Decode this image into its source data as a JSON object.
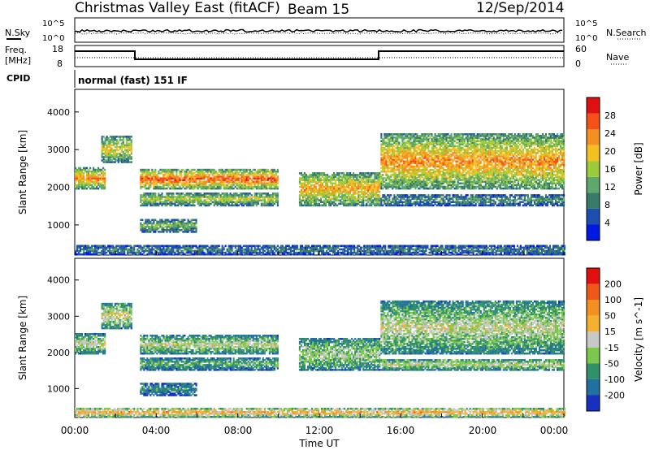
{
  "header": {
    "title": "Christmas Valley East (fitACF)",
    "beam": "Beam 15",
    "date": "12/Sep/2014"
  },
  "params": {
    "nsky_label": "N.Sky",
    "nsearch_label": "N.Search",
    "noise_ticks_top": "10^5",
    "noise_ticks_bottom": "10^0",
    "freq_label_1": "Freq.",
    "freq_label_2": "[MHz]",
    "freq_ticks": [
      "18",
      "8"
    ],
    "nave_label": "Nave",
    "nave_ticks": [
      "60",
      "0"
    ],
    "cpid_label": "CPID",
    "cpid_value": "normal (fast) 151 IF"
  },
  "chart_data": [
    {
      "type": "heatmap",
      "name": "power",
      "ylabel": "Slant Range [km]",
      "yticks": [
        1000,
        2000,
        3000,
        4000
      ],
      "ylim": [
        200,
        4600
      ],
      "xlim": [
        0,
        24
      ],
      "colorbar_label": "Power [dB]",
      "colorbar_ticks": [
        "4",
        "8",
        "12",
        "16",
        "20",
        "24",
        "28"
      ],
      "colors": [
        "#0018e0",
        "#1d4fb0",
        "#3a7a6a",
        "#5da86a",
        "#9ccb3a",
        "#f4c020",
        "#f49020",
        "#f45018",
        "#e01010"
      ],
      "bands": [
        {
          "t0": 0.0,
          "t1": 1.5,
          "r0": 1950,
          "r1": 2500,
          "level": 0.75
        },
        {
          "t0": 1.3,
          "t1": 2.8,
          "r0": 2650,
          "r1": 3350,
          "level": 0.6
        },
        {
          "t0": 3.2,
          "t1": 10.0,
          "r0": 1950,
          "r1": 2450,
          "level": 0.85
        },
        {
          "t0": 3.2,
          "t1": 10.0,
          "r0": 1500,
          "r1": 1850,
          "level": 0.55
        },
        {
          "t0": 3.2,
          "t1": 6.0,
          "r0": 800,
          "r1": 1150,
          "level": 0.45
        },
        {
          "t0": 11.0,
          "t1": 15.0,
          "r0": 1500,
          "r1": 2400,
          "level": 0.7
        },
        {
          "t0": 15.0,
          "t1": 24.0,
          "r0": 1950,
          "r1": 3400,
          "level": 0.75
        },
        {
          "t0": 15.0,
          "t1": 24.0,
          "r0": 1500,
          "r1": 1800,
          "level": 0.35
        },
        {
          "t0": 0.0,
          "t1": 24.0,
          "r0": 200,
          "r1": 450,
          "level": 0.3
        }
      ]
    },
    {
      "type": "heatmap",
      "name": "velocity",
      "ylabel": "Slant Range [km]",
      "yticks": [
        1000,
        2000,
        3000,
        4000
      ],
      "ylim": [
        200,
        4600
      ],
      "xlim": [
        0,
        24
      ],
      "xticks": [
        "00:00",
        "04:00",
        "08:00",
        "12:00",
        "16:00",
        "20:00",
        "00:00"
      ],
      "xlabel": "Time UT",
      "colorbar_label": "Velocity [m s^-1]",
      "colorbar_ticks": [
        "200",
        "100",
        "50",
        "15",
        "-15",
        "-50",
        "-100",
        "-200"
      ],
      "colors": [
        "#1830c0",
        "#2070a0",
        "#30906a",
        "#7bc84a",
        "#c8c8c8",
        "#f4b030",
        "#f49020",
        "#f05818",
        "#e01010"
      ],
      "bands": [
        {
          "t0": 0.0,
          "t1": 1.5,
          "r0": 1950,
          "r1": 2500,
          "level": 0.5
        },
        {
          "t0": 1.3,
          "t1": 2.8,
          "r0": 2650,
          "r1": 3350,
          "level": 0.55
        },
        {
          "t0": 3.2,
          "t1": 10.0,
          "r0": 1950,
          "r1": 2450,
          "level": 0.5
        },
        {
          "t0": 3.2,
          "t1": 10.0,
          "r0": 1500,
          "r1": 1850,
          "level": 0.35
        },
        {
          "t0": 3.2,
          "t1": 6.0,
          "r0": 800,
          "r1": 1150,
          "level": 0.25
        },
        {
          "t0": 11.0,
          "t1": 15.0,
          "r0": 1500,
          "r1": 2400,
          "level": 0.45
        },
        {
          "t0": 15.0,
          "t1": 24.0,
          "r0": 1950,
          "r1": 3400,
          "level": 0.5
        },
        {
          "t0": 15.0,
          "t1": 24.0,
          "r0": 1500,
          "r1": 1800,
          "level": 0.5
        },
        {
          "t0": 0.0,
          "t1": 24.0,
          "r0": 200,
          "r1": 450,
          "level": 0.7
        }
      ]
    }
  ]
}
